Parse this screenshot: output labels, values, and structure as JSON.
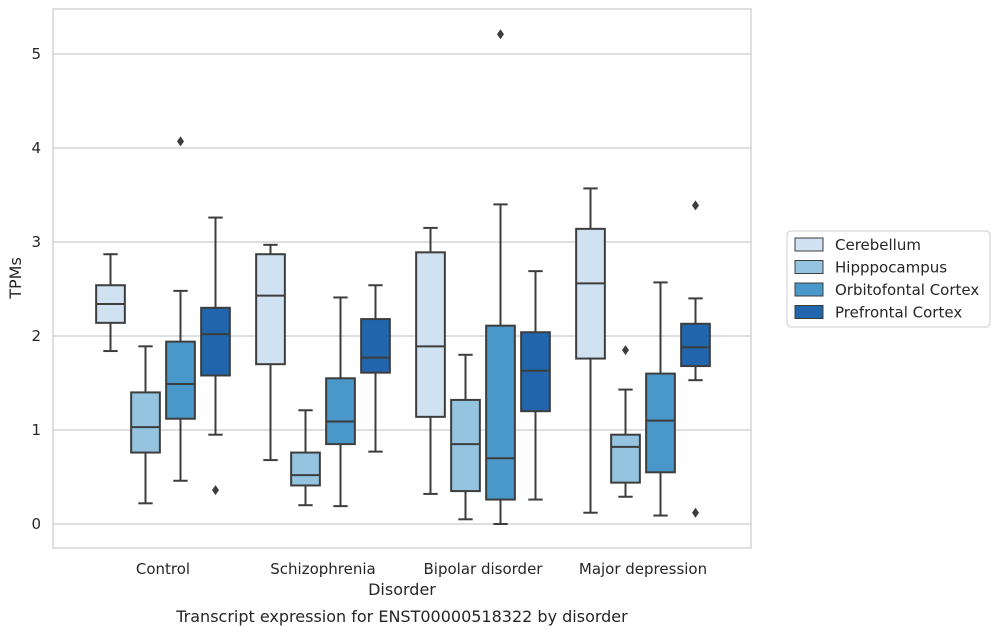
{
  "chart_data": {
    "type": "box",
    "caption": "Transcript expression for ENST00000518322 by disorder",
    "xlabel": "Disorder",
    "ylabel": "TPMs",
    "categories": [
      "Control",
      "Schizophrenia",
      "Bipolar disorder",
      "Major depression"
    ],
    "ylim": [
      -0.25,
      5.48
    ],
    "yticks": [
      "0",
      "1",
      "2",
      "3",
      "4",
      "5"
    ],
    "grid": "horizontal",
    "legend_position": "center-right",
    "series": [
      {
        "name": "Cerebellum",
        "color": "#d0e1f2",
        "boxes": [
          {
            "whislo": 1.84,
            "q1": 2.14,
            "med": 2.34,
            "q3": 2.54,
            "whishi": 2.87,
            "fliers": []
          },
          {
            "whislo": 0.68,
            "q1": 1.7,
            "med": 2.43,
            "q3": 2.87,
            "whishi": 2.97,
            "fliers": []
          },
          {
            "whislo": 0.32,
            "q1": 1.14,
            "med": 1.89,
            "q3": 2.89,
            "whishi": 3.15,
            "fliers": []
          },
          {
            "whislo": 0.12,
            "q1": 1.76,
            "med": 2.56,
            "q3": 3.14,
            "whishi": 3.57,
            "fliers": []
          }
        ]
      },
      {
        "name": "Hipppocampus",
        "color": "#94c4df",
        "boxes": [
          {
            "whislo": 0.22,
            "q1": 0.76,
            "med": 1.03,
            "q3": 1.4,
            "whishi": 1.89,
            "fliers": []
          },
          {
            "whislo": 0.2,
            "q1": 0.41,
            "med": 0.52,
            "q3": 0.76,
            "whishi": 1.21,
            "fliers": []
          },
          {
            "whislo": 0.05,
            "q1": 0.35,
            "med": 0.85,
            "q3": 1.32,
            "whishi": 1.8,
            "fliers": []
          },
          {
            "whislo": 0.29,
            "q1": 0.44,
            "med": 0.82,
            "q3": 0.95,
            "whishi": 1.43,
            "fliers": [
              1.85
            ]
          }
        ]
      },
      {
        "name": "Orbitofontal Cortex",
        "color": "#4a98c9",
        "boxes": [
          {
            "whislo": 0.46,
            "q1": 1.12,
            "med": 1.49,
            "q3": 1.94,
            "whishi": 2.48,
            "fliers": [
              4.07
            ]
          },
          {
            "whislo": 0.19,
            "q1": 0.85,
            "med": 1.09,
            "q3": 1.55,
            "whishi": 2.41,
            "fliers": []
          },
          {
            "whislo": 0.0,
            "q1": 0.26,
            "med": 0.7,
            "q3": 2.11,
            "whishi": 3.4,
            "fliers": [
              5.21
            ]
          },
          {
            "whislo": 0.09,
            "q1": 0.55,
            "med": 1.1,
            "q3": 1.6,
            "whishi": 2.57,
            "fliers": []
          }
        ]
      },
      {
        "name": "Prefrontal Cortex",
        "color": "#2166ac",
        "boxes": [
          {
            "whislo": 0.95,
            "q1": 1.58,
            "med": 2.02,
            "q3": 2.3,
            "whishi": 3.26,
            "fliers": [
              0.36
            ]
          },
          {
            "whislo": 0.77,
            "q1": 1.61,
            "med": 1.77,
            "q3": 2.18,
            "whishi": 2.54,
            "fliers": []
          },
          {
            "whislo": 0.26,
            "q1": 1.2,
            "med": 1.63,
            "q3": 2.04,
            "whishi": 2.69,
            "fliers": []
          },
          {
            "whislo": 1.53,
            "q1": 1.68,
            "med": 1.88,
            "q3": 2.13,
            "whishi": 2.4,
            "fliers": [
              3.39,
              0.12
            ]
          }
        ]
      }
    ]
  }
}
